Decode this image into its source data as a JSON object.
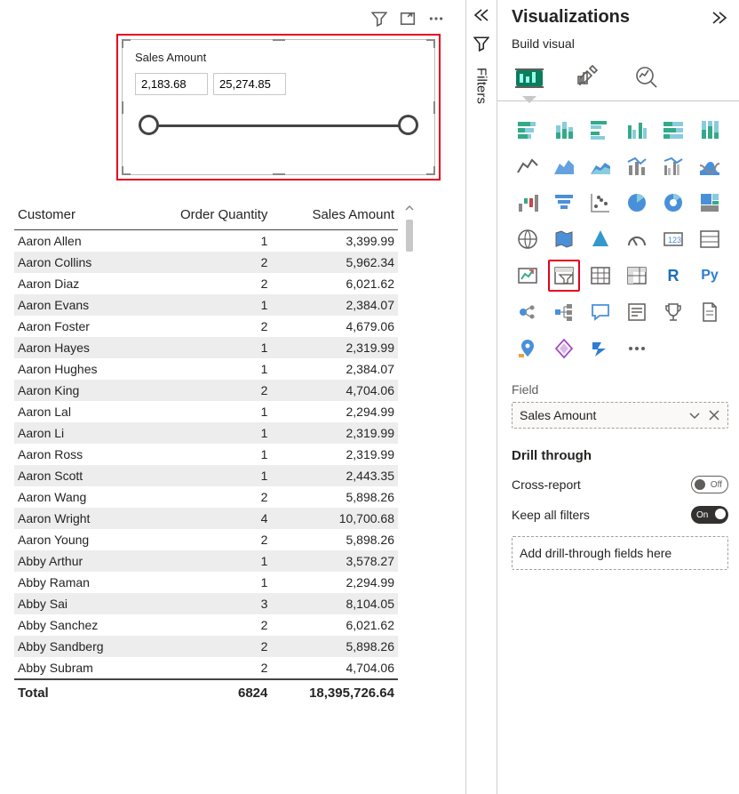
{
  "colors": {
    "highlight": "#e6001f",
    "accent_green": "#12805c",
    "accent_blue": "#2d7dd2",
    "azure": "#3399cc"
  },
  "slicer": {
    "title": "Sales Amount",
    "min": "2,183.68",
    "max": "25,274.85"
  },
  "table": {
    "columns": [
      "Customer",
      "Order Quantity",
      "Sales Amount"
    ],
    "rows": [
      [
        "Aaron Allen",
        "1",
        "3,399.99"
      ],
      [
        "Aaron Collins",
        "2",
        "5,962.34"
      ],
      [
        "Aaron Diaz",
        "2",
        "6,021.62"
      ],
      [
        "Aaron Evans",
        "1",
        "2,384.07"
      ],
      [
        "Aaron Foster",
        "2",
        "4,679.06"
      ],
      [
        "Aaron Hayes",
        "1",
        "2,319.99"
      ],
      [
        "Aaron Hughes",
        "1",
        "2,384.07"
      ],
      [
        "Aaron King",
        "2",
        "4,704.06"
      ],
      [
        "Aaron Lal",
        "1",
        "2,294.99"
      ],
      [
        "Aaron Li",
        "1",
        "2,319.99"
      ],
      [
        "Aaron Ross",
        "1",
        "2,319.99"
      ],
      [
        "Aaron Scott",
        "1",
        "2,443.35"
      ],
      [
        "Aaron Wang",
        "2",
        "5,898.26"
      ],
      [
        "Aaron Wright",
        "4",
        "10,700.68"
      ],
      [
        "Aaron Young",
        "2",
        "5,898.26"
      ],
      [
        "Abby Arthur",
        "1",
        "3,578.27"
      ],
      [
        "Abby Raman",
        "1",
        "2,294.99"
      ],
      [
        "Abby Sai",
        "3",
        "8,104.05"
      ],
      [
        "Abby Sanchez",
        "2",
        "6,021.62"
      ],
      [
        "Abby Sandberg",
        "2",
        "5,898.26"
      ],
      [
        "Abby Subram",
        "2",
        "4,704.06"
      ]
    ],
    "footer": [
      "Total",
      "6824",
      "18,395,726.64"
    ]
  },
  "rail": {
    "label": "Filters"
  },
  "panel": {
    "title": "Visualizations",
    "subtitle": "Build visual",
    "field_section": "Field",
    "field_value": "Sales Amount",
    "drill_head": "Drill through",
    "cross_report": "Cross-report",
    "keep_filters": "Keep all filters",
    "drop_hint": "Add drill-through fields here",
    "toggle_off": "Off",
    "toggle_on": "On"
  },
  "viz_icons": [
    "stacked-bar",
    "stacked-column",
    "clustered-bar",
    "clustered-column",
    "stacked-bar-100",
    "stacked-column-100",
    "line",
    "area",
    "stacked-area",
    "line-stacked-column",
    "line-clustered-column",
    "ribbon",
    "waterfall",
    "funnel",
    "scatter",
    "pie",
    "donut",
    "treemap",
    "map",
    "filled-map",
    "azure-map",
    "gauge",
    "card",
    "multi-row-card",
    "kpi",
    "slicer",
    "table",
    "matrix",
    "r-visual",
    "py-visual",
    "key-influencers",
    "decomposition-tree",
    "qa",
    "smart-narrative",
    "goals",
    "paginated-report",
    "arcgis",
    "power-apps",
    "power-automate",
    "more"
  ],
  "highlighted_viz": "slicer"
}
